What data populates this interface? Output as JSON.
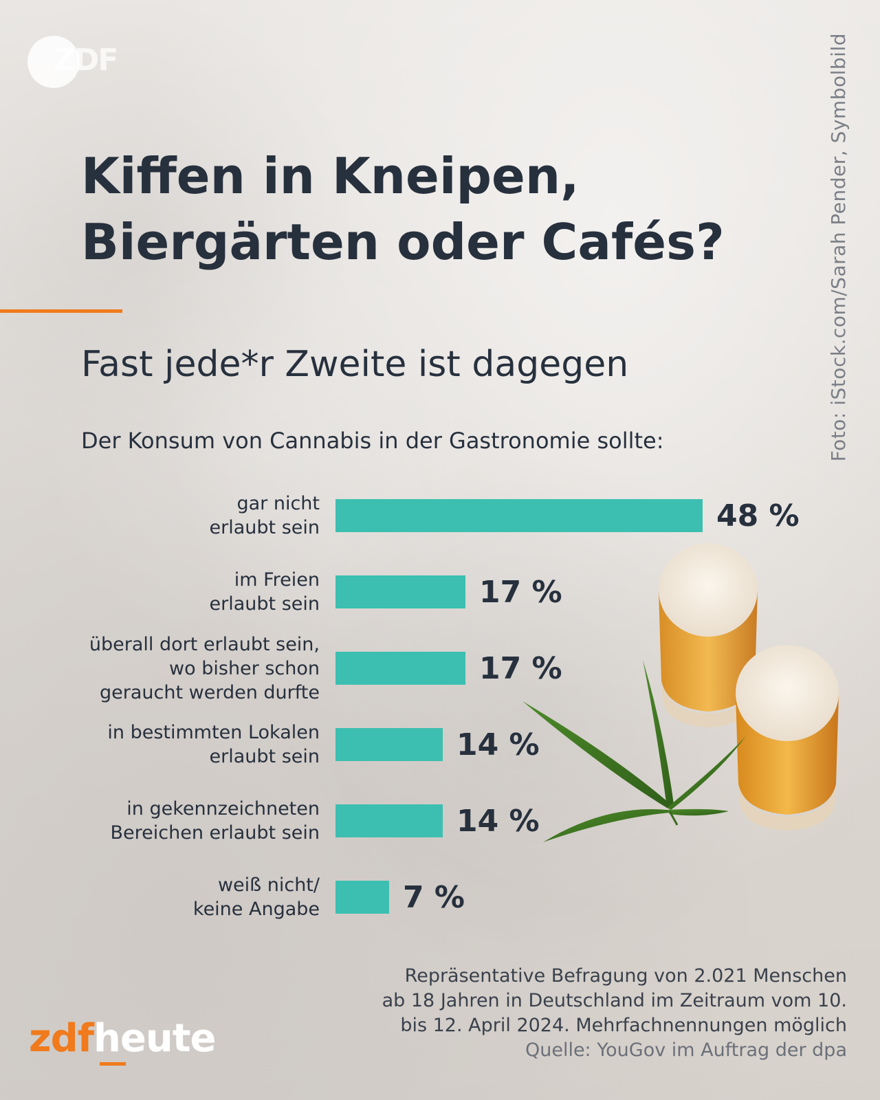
{
  "header": {
    "logo_text": "ZDF",
    "photo_credit": "Foto: iStock.com/Sarah Pender, Symbolbild"
  },
  "colors": {
    "bar": "#3cbfb0",
    "accent": "#f07a1c",
    "text": "#27303d"
  },
  "chart_data": {
    "type": "bar",
    "orientation": "horizontal",
    "title": "Kiffen in Kneipen, Biergärten oder Cafés?",
    "subtitle": "Fast jede*r Zweite ist dagegen",
    "question": "Der Konsum von Cannabis in der Gastronomie sollte:",
    "value_suffix": " %",
    "xlim": [
      0,
      48
    ],
    "grid": false,
    "categories": [
      [
        "gar nicht",
        "erlaubt sein"
      ],
      [
        "im Freien",
        "erlaubt sein"
      ],
      [
        "überall dort erlaubt sein,",
        "wo bisher schon",
        "geraucht werden durfte"
      ],
      [
        "in bestimmten Lokalen",
        "erlaubt sein"
      ],
      [
        "in gekennzeichneten",
        "Bereichen erlaubt sein"
      ],
      [
        "weiß nicht/",
        "keine Angabe"
      ]
    ],
    "values": [
      48,
      17,
      17,
      14,
      14,
      7
    ]
  },
  "footnote": {
    "lines": [
      "Repräsentative Befragung von 2.021 Menschen",
      "ab 18 Jahren in Deutschland im Zeitraum vom 10.",
      "bis 12. April 2024. Mehrfachnennungen möglich"
    ],
    "source": "Quelle: YouGov im Auftrag der dpa"
  },
  "brand": {
    "part1": "zdf",
    "part2": "heute"
  }
}
